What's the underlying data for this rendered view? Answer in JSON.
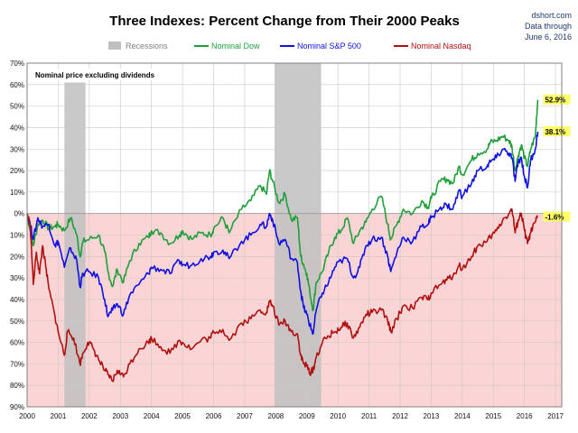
{
  "chart_data": {
    "type": "line",
    "title": "Three Indexes: Percent Change from Their 2000 Peaks",
    "source": {
      "site": "dshort.com",
      "line2": "Data through",
      "line3": "June 6, 2016"
    },
    "note": "Nominal price excluding dividends",
    "ylim": [
      -90,
      70
    ],
    "y_ticks": [
      70,
      60,
      50,
      40,
      30,
      20,
      10,
      0,
      -10,
      -20,
      -30,
      -40,
      -50,
      -60,
      -70,
      -80,
      -90
    ],
    "y_tick_labels": [
      "70%",
      "60%",
      "50%",
      "40%",
      "30%",
      "20%",
      "10%",
      "0%",
      "10%",
      "20%",
      "30%",
      "40%",
      "50%",
      "60%",
      "70%",
      "80%",
      "90%"
    ],
    "xlim": [
      2000,
      2017.2
    ],
    "x_ticks": [
      "2000",
      "2001",
      "2002",
      "2003",
      "2004",
      "2005",
      "2006",
      "2007",
      "2008",
      "2009",
      "2010",
      "2011",
      "2012",
      "2013",
      "2014",
      "2015",
      "2016",
      "2017"
    ],
    "grid": true,
    "negative_region_color": "#fbd5d5",
    "recessions": [
      {
        "start": 2001.2,
        "end": 2001.88
      },
      {
        "start": 2007.96,
        "end": 2009.46
      }
    ],
    "legend": [
      {
        "label": "Recessions",
        "color": "#bfbfbf",
        "kind": "box"
      },
      {
        "label": "Nominal Dow",
        "color": "#1f9e3a",
        "kind": "line"
      },
      {
        "label": "Nominal S&P 500",
        "color": "#1010e0",
        "kind": "line"
      },
      {
        "label": "Nominal Nasdaq",
        "color": "#b01010",
        "kind": "line"
      }
    ],
    "series": [
      {
        "name": "Nominal Dow",
        "color": "#1f9e3a",
        "end_label": "52.9%",
        "points": [
          [
            2000.0,
            0
          ],
          [
            2000.1,
            -8
          ],
          [
            2000.2,
            -15
          ],
          [
            2000.35,
            -5
          ],
          [
            2000.5,
            -3
          ],
          [
            2000.7,
            -7
          ],
          [
            2000.9,
            -6
          ],
          [
            2001.0,
            -5
          ],
          [
            2001.2,
            -8
          ],
          [
            2001.4,
            -2
          ],
          [
            2001.6,
            -10
          ],
          [
            2001.7,
            -20
          ],
          [
            2001.8,
            -13
          ],
          [
            2002.0,
            -12
          ],
          [
            2002.3,
            -10
          ],
          [
            2002.5,
            -18
          ],
          [
            2002.6,
            -27
          ],
          [
            2002.75,
            -34
          ],
          [
            2002.9,
            -26
          ],
          [
            2003.1,
            -32
          ],
          [
            2003.3,
            -22
          ],
          [
            2003.6,
            -14
          ],
          [
            2003.9,
            -11
          ],
          [
            2004.0,
            -8
          ],
          [
            2004.3,
            -9
          ],
          [
            2004.6,
            -14
          ],
          [
            2004.9,
            -10
          ],
          [
            2005.0,
            -8
          ],
          [
            2005.3,
            -12
          ],
          [
            2005.6,
            -9
          ],
          [
            2005.9,
            -10
          ],
          [
            2006.0,
            -7
          ],
          [
            2006.3,
            -2
          ],
          [
            2006.5,
            -9
          ],
          [
            2006.9,
            2
          ],
          [
            2007.2,
            6
          ],
          [
            2007.5,
            13
          ],
          [
            2007.7,
            9
          ],
          [
            2007.8,
            20
          ],
          [
            2007.9,
            15
          ],
          [
            2008.1,
            5
          ],
          [
            2008.3,
            9
          ],
          [
            2008.5,
            -3
          ],
          [
            2008.7,
            -2
          ],
          [
            2008.8,
            -20
          ],
          [
            2008.9,
            -24
          ],
          [
            2009.0,
            -28
          ],
          [
            2009.1,
            -37
          ],
          [
            2009.2,
            -45
          ],
          [
            2009.3,
            -32
          ],
          [
            2009.5,
            -27
          ],
          [
            2009.7,
            -18
          ],
          [
            2009.9,
            -11
          ],
          [
            2010.1,
            -8
          ],
          [
            2010.3,
            -2
          ],
          [
            2010.5,
            -14
          ],
          [
            2010.7,
            -8
          ],
          [
            2010.9,
            -4
          ],
          [
            2011.1,
            2
          ],
          [
            2011.4,
            8
          ],
          [
            2011.6,
            -5
          ],
          [
            2011.7,
            -12
          ],
          [
            2011.9,
            -5
          ],
          [
            2012.1,
            2
          ],
          [
            2012.4,
            0
          ],
          [
            2012.7,
            6
          ],
          [
            2012.9,
            3
          ],
          [
            2013.0,
            7
          ],
          [
            2013.3,
            15
          ],
          [
            2013.5,
            16
          ],
          [
            2013.7,
            14
          ],
          [
            2013.9,
            22
          ],
          [
            2014.0,
            18
          ],
          [
            2014.3,
            25
          ],
          [
            2014.5,
            28
          ],
          [
            2014.8,
            30
          ],
          [
            2014.9,
            33
          ],
          [
            2015.1,
            34
          ],
          [
            2015.3,
            36
          ],
          [
            2015.5,
            34
          ],
          [
            2015.6,
            31
          ],
          [
            2015.7,
            20
          ],
          [
            2015.8,
            27
          ],
          [
            2015.9,
            32
          ],
          [
            2016.0,
            26
          ],
          [
            2016.1,
            22
          ],
          [
            2016.2,
            30
          ],
          [
            2016.35,
            36
          ],
          [
            2016.43,
            52.9
          ]
        ]
      },
      {
        "name": "Nominal S&P 500",
        "color": "#1010e0",
        "end_label": "38.1%",
        "points": [
          [
            2000.0,
            0
          ],
          [
            2000.1,
            -5
          ],
          [
            2000.2,
            -12
          ],
          [
            2000.35,
            -2
          ],
          [
            2000.5,
            -6
          ],
          [
            2000.7,
            -5
          ],
          [
            2000.9,
            -15
          ],
          [
            2001.0,
            -13
          ],
          [
            2001.2,
            -25
          ],
          [
            2001.4,
            -16
          ],
          [
            2001.6,
            -22
          ],
          [
            2001.7,
            -34
          ],
          [
            2001.8,
            -28
          ],
          [
            2002.0,
            -27
          ],
          [
            2002.3,
            -30
          ],
          [
            2002.5,
            -40
          ],
          [
            2002.6,
            -48
          ],
          [
            2002.75,
            -45
          ],
          [
            2002.9,
            -42
          ],
          [
            2003.1,
            -47
          ],
          [
            2003.3,
            -38
          ],
          [
            2003.6,
            -33
          ],
          [
            2003.9,
            -28
          ],
          [
            2004.0,
            -25
          ],
          [
            2004.3,
            -26
          ],
          [
            2004.6,
            -28
          ],
          [
            2004.9,
            -22
          ],
          [
            2005.0,
            -24
          ],
          [
            2005.3,
            -24
          ],
          [
            2005.6,
            -21
          ],
          [
            2005.9,
            -20
          ],
          [
            2006.0,
            -18
          ],
          [
            2006.3,
            -17
          ],
          [
            2006.5,
            -21
          ],
          [
            2006.9,
            -13
          ],
          [
            2007.2,
            -10
          ],
          [
            2007.5,
            -5
          ],
          [
            2007.7,
            -6
          ],
          [
            2007.8,
            0
          ],
          [
            2007.9,
            -3
          ],
          [
            2008.1,
            -14
          ],
          [
            2008.3,
            -12
          ],
          [
            2008.5,
            -21
          ],
          [
            2008.7,
            -23
          ],
          [
            2008.8,
            -36
          ],
          [
            2008.9,
            -44
          ],
          [
            2009.0,
            -47
          ],
          [
            2009.1,
            -52
          ],
          [
            2009.2,
            -56
          ],
          [
            2009.3,
            -45
          ],
          [
            2009.5,
            -37
          ],
          [
            2009.7,
            -32
          ],
          [
            2009.9,
            -25
          ],
          [
            2010.1,
            -22
          ],
          [
            2010.3,
            -21
          ],
          [
            2010.5,
            -30
          ],
          [
            2010.7,
            -25
          ],
          [
            2010.9,
            -15
          ],
          [
            2011.1,
            -12
          ],
          [
            2011.4,
            -11
          ],
          [
            2011.6,
            -20
          ],
          [
            2011.7,
            -27
          ],
          [
            2011.9,
            -18
          ],
          [
            2012.1,
            -11
          ],
          [
            2012.4,
            -13
          ],
          [
            2012.7,
            -6
          ],
          [
            2012.9,
            -5
          ],
          [
            2013.0,
            -2
          ],
          [
            2013.3,
            3
          ],
          [
            2013.5,
            4
          ],
          [
            2013.7,
            2
          ],
          [
            2013.9,
            11
          ],
          [
            2014.0,
            8
          ],
          [
            2014.3,
            14
          ],
          [
            2014.5,
            20
          ],
          [
            2014.8,
            22
          ],
          [
            2014.9,
            24
          ],
          [
            2015.1,
            26
          ],
          [
            2015.3,
            30
          ],
          [
            2015.5,
            28
          ],
          [
            2015.6,
            26
          ],
          [
            2015.7,
            15
          ],
          [
            2015.8,
            24
          ],
          [
            2015.9,
            26
          ],
          [
            2016.0,
            17
          ],
          [
            2016.1,
            12
          ],
          [
            2016.2,
            25
          ],
          [
            2016.35,
            30
          ],
          [
            2016.43,
            38.1
          ]
        ]
      },
      {
        "name": "Nominal Nasdaq",
        "color": "#b01010",
        "end_label": "-1.6%",
        "points": [
          [
            2000.0,
            0
          ],
          [
            2000.1,
            -5
          ],
          [
            2000.2,
            -33
          ],
          [
            2000.3,
            -18
          ],
          [
            2000.4,
            -28
          ],
          [
            2000.5,
            -15
          ],
          [
            2000.6,
            -25
          ],
          [
            2000.7,
            -35
          ],
          [
            2000.9,
            -48
          ],
          [
            2001.0,
            -55
          ],
          [
            2001.2,
            -66
          ],
          [
            2001.3,
            -55
          ],
          [
            2001.5,
            -58
          ],
          [
            2001.7,
            -70
          ],
          [
            2001.8,
            -65
          ],
          [
            2001.95,
            -60
          ],
          [
            2002.1,
            -62
          ],
          [
            2002.3,
            -68
          ],
          [
            2002.5,
            -73
          ],
          [
            2002.6,
            -75
          ],
          [
            2002.75,
            -78
          ],
          [
            2002.9,
            -73
          ],
          [
            2003.1,
            -76
          ],
          [
            2003.3,
            -70
          ],
          [
            2003.6,
            -63
          ],
          [
            2003.9,
            -60
          ],
          [
            2004.0,
            -58
          ],
          [
            2004.3,
            -62
          ],
          [
            2004.6,
            -65
          ],
          [
            2004.9,
            -59
          ],
          [
            2005.0,
            -60
          ],
          [
            2005.3,
            -63
          ],
          [
            2005.6,
            -59
          ],
          [
            2005.9,
            -58
          ],
          [
            2006.0,
            -55
          ],
          [
            2006.3,
            -54
          ],
          [
            2006.5,
            -59
          ],
          [
            2006.9,
            -51
          ],
          [
            2007.2,
            -49
          ],
          [
            2007.5,
            -45
          ],
          [
            2007.7,
            -46
          ],
          [
            2007.8,
            -41
          ],
          [
            2007.9,
            -43
          ],
          [
            2008.1,
            -52
          ],
          [
            2008.3,
            -50
          ],
          [
            2008.5,
            -55
          ],
          [
            2008.7,
            -56
          ],
          [
            2008.8,
            -66
          ],
          [
            2008.9,
            -70
          ],
          [
            2009.0,
            -71
          ],
          [
            2009.1,
            -74
          ],
          [
            2009.2,
            -73
          ],
          [
            2009.3,
            -67
          ],
          [
            2009.5,
            -60
          ],
          [
            2009.7,
            -57
          ],
          [
            2009.9,
            -55
          ],
          [
            2010.1,
            -53
          ],
          [
            2010.3,
            -51
          ],
          [
            2010.5,
            -58
          ],
          [
            2010.7,
            -53
          ],
          [
            2010.9,
            -47
          ],
          [
            2011.1,
            -46
          ],
          [
            2011.4,
            -45
          ],
          [
            2011.6,
            -50
          ],
          [
            2011.7,
            -55
          ],
          [
            2011.9,
            -49
          ],
          [
            2012.1,
            -43
          ],
          [
            2012.4,
            -44
          ],
          [
            2012.7,
            -39
          ],
          [
            2012.9,
            -40
          ],
          [
            2013.0,
            -37
          ],
          [
            2013.3,
            -33
          ],
          [
            2013.5,
            -31
          ],
          [
            2013.7,
            -29
          ],
          [
            2013.9,
            -24
          ],
          [
            2014.0,
            -26
          ],
          [
            2014.3,
            -20
          ],
          [
            2014.5,
            -15
          ],
          [
            2014.8,
            -13
          ],
          [
            2014.9,
            -11
          ],
          [
            2015.1,
            -8
          ],
          [
            2015.3,
            -3
          ],
          [
            2015.5,
            0
          ],
          [
            2015.6,
            2
          ],
          [
            2015.7,
            -9
          ],
          [
            2015.8,
            -3
          ],
          [
            2015.9,
            0
          ],
          [
            2016.0,
            -8
          ],
          [
            2016.1,
            -14
          ],
          [
            2016.2,
            -9
          ],
          [
            2016.35,
            -4
          ],
          [
            2016.43,
            -1.6
          ]
        ]
      }
    ]
  }
}
